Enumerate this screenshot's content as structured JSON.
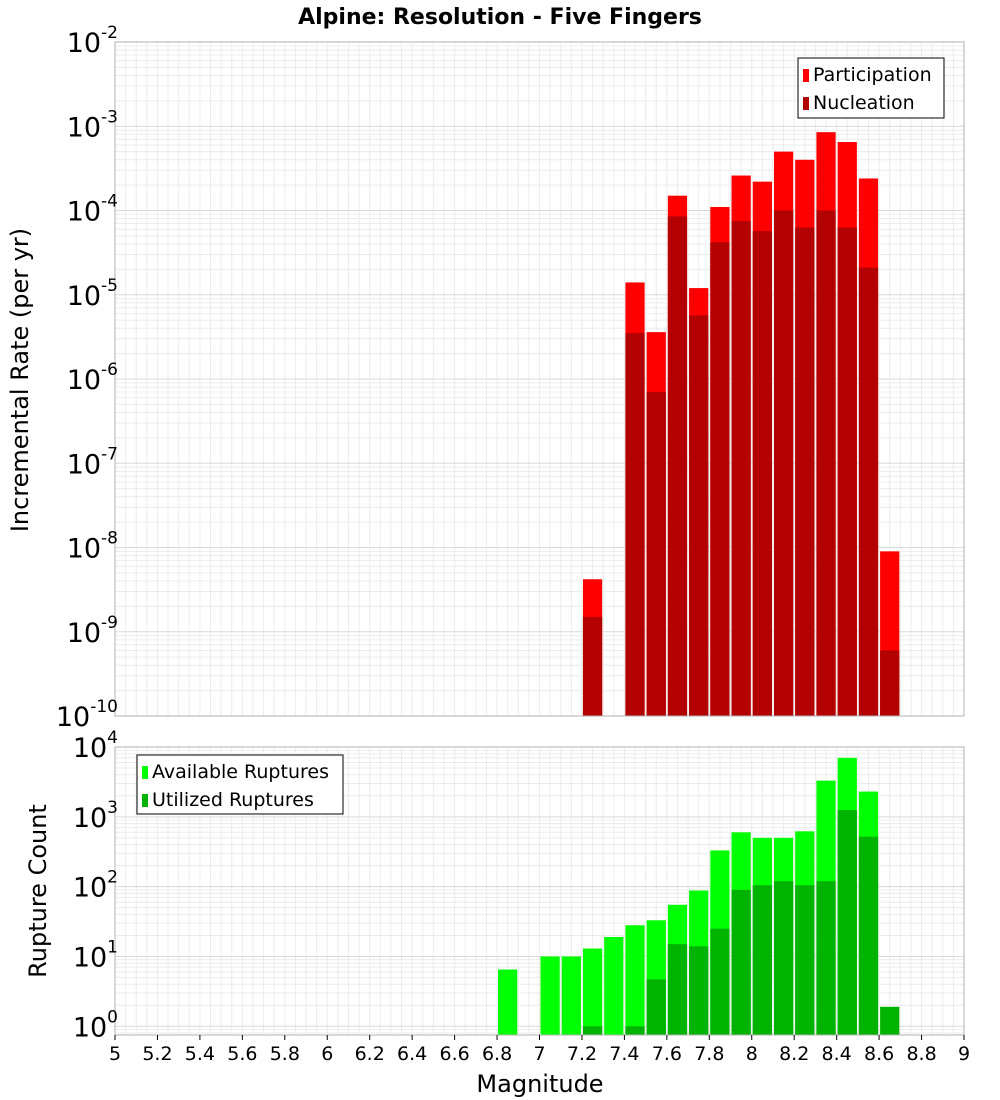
{
  "chart_data": [
    {
      "type": "bar",
      "title": "Alpine: Resolution - Five Fingers",
      "xlabel": "",
      "ylabel": "Incremental Rate (per yr)",
      "yscale": "log",
      "ylim": [
        1e-10,
        0.01
      ],
      "xlim": [
        5,
        9
      ],
      "bin_width": 0.1,
      "grid": true,
      "legend_position": "top-right",
      "y_tick_labels": [
        {
          "base": "10",
          "exp": "-10"
        },
        {
          "base": "10",
          "exp": "-9"
        },
        {
          "base": "10",
          "exp": "-8"
        },
        {
          "base": "10",
          "exp": "-7"
        },
        {
          "base": "10",
          "exp": "-6"
        },
        {
          "base": "10",
          "exp": "-5"
        },
        {
          "base": "10",
          "exp": "-4"
        },
        {
          "base": "10",
          "exp": "-3"
        },
        {
          "base": "10",
          "exp": "-2"
        }
      ],
      "x": [
        7.25,
        7.45,
        7.55,
        7.65,
        7.75,
        7.85,
        7.95,
        8.05,
        8.15,
        8.25,
        8.35,
        8.45,
        8.55,
        8.65
      ],
      "series": [
        {
          "name": "Participation",
          "color": "#ff0000",
          "values": [
            4.2e-09,
            1.4e-05,
            3.6e-06,
            0.00015,
            1.2e-05,
            0.00011,
            0.00026,
            0.00022,
            0.0005,
            0.0004,
            0.00085,
            0.00065,
            0.00024,
            9e-09
          ]
        },
        {
          "name": "Nucleation",
          "color": "#b30000",
          "values": [
            1.5e-09,
            3.5e-06,
            7e-07,
            8.5e-05,
            5.7e-06,
            4.2e-05,
            7.5e-05,
            5.7e-05,
            0.0001,
            6.3e-05,
            0.0001,
            6.3e-05,
            2.1e-05,
            6e-10
          ]
        }
      ]
    },
    {
      "type": "bar",
      "title": "",
      "xlabel": "Magnitude",
      "ylabel": "Rupture Count",
      "yscale": "log",
      "ylim": [
        0.75,
        10000
      ],
      "xlim": [
        5,
        9
      ],
      "bin_width": 0.1,
      "grid": true,
      "legend_position": "top-left",
      "x_tick_labels": [
        "5",
        "5.2",
        "5.4",
        "5.6",
        "5.8",
        "6",
        "6.2",
        "6.4",
        "6.6",
        "6.8",
        "7",
        "7.2",
        "7.4",
        "7.6",
        "7.8",
        "8",
        "8.2",
        "8.4",
        "8.6",
        "8.8",
        "9"
      ],
      "y_tick_labels": [
        {
          "base": "10",
          "exp": "0"
        },
        {
          "base": "10",
          "exp": "1"
        },
        {
          "base": "10",
          "exp": "2"
        },
        {
          "base": "10",
          "exp": "3"
        },
        {
          "base": "10",
          "exp": "4"
        }
      ],
      "x": [
        6.85,
        7.05,
        7.15,
        7.25,
        7.35,
        7.45,
        7.55,
        7.65,
        7.75,
        7.85,
        7.95,
        8.05,
        8.15,
        8.25,
        8.35,
        8.45,
        8.55,
        8.65
      ],
      "series": [
        {
          "name": "Available Ruptures",
          "color": "#00ff00",
          "values": [
            6.5,
            10,
            10,
            13,
            19,
            28,
            33,
            55,
            88,
            330,
            600,
            500,
            500,
            620,
            3300,
            7000,
            2300,
            0
          ]
        },
        {
          "name": "Utilized Ruptures",
          "color": "#00b300",
          "values": [
            0,
            0,
            0,
            1,
            0,
            1,
            4.7,
            15,
            14,
            25,
            90,
            105,
            120,
            105,
            120,
            1250,
            520,
            1.9
          ]
        }
      ]
    }
  ]
}
